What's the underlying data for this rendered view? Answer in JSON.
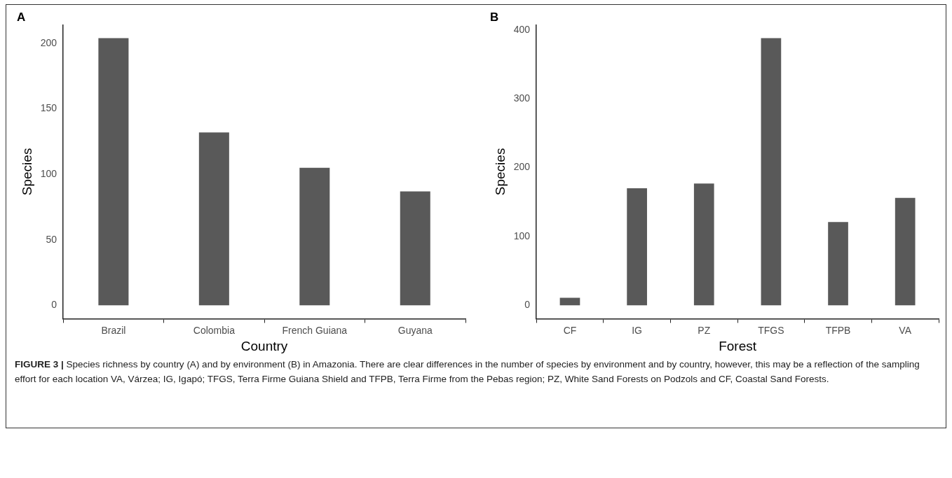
{
  "chart_data": [
    {
      "type": "bar",
      "title": "A",
      "xlabel": "Country",
      "ylabel": "Species",
      "categories": [
        "Brazil",
        "Colombia",
        "French Guiana",
        "Guyana"
      ],
      "values": [
        204,
        132,
        105,
        87
      ],
      "color": "#595959",
      "ylim": [
        -10.2,
        214.2
      ],
      "yticks": [
        0,
        50,
        100,
        150,
        200
      ],
      "grid": false,
      "legend": false,
      "annotations": [
        "FIGURE 3 |",
        "Species richness by country (A) and by environment (B) in Amazonia. There are clear differences in the number of species by environment and by country, however, this may be a reflection of the sampling effort for each location VA, Várzea; IG, Igapó; TFGS, Terra Firme Guiana Shield and TFPB, Terra Firme from the Pebas region; PZ, White Sand Forests on Podzols and CF, Coastal Sand Forests."
      ]
    },
    {
      "type": "bar",
      "title": "B",
      "xlabel": "Forest",
      "ylabel": "Species",
      "categories": [
        "CF",
        "IG",
        "PZ",
        "TFGS",
        "TFPB",
        "VA"
      ],
      "values": [
        11,
        170,
        177,
        388,
        121,
        156
      ],
      "color": "#595959",
      "ylim": [
        -19.4,
        407.4
      ],
      "yticks": [
        0,
        100,
        200,
        300,
        400
      ],
      "grid": false,
      "legend": false
    }
  ]
}
